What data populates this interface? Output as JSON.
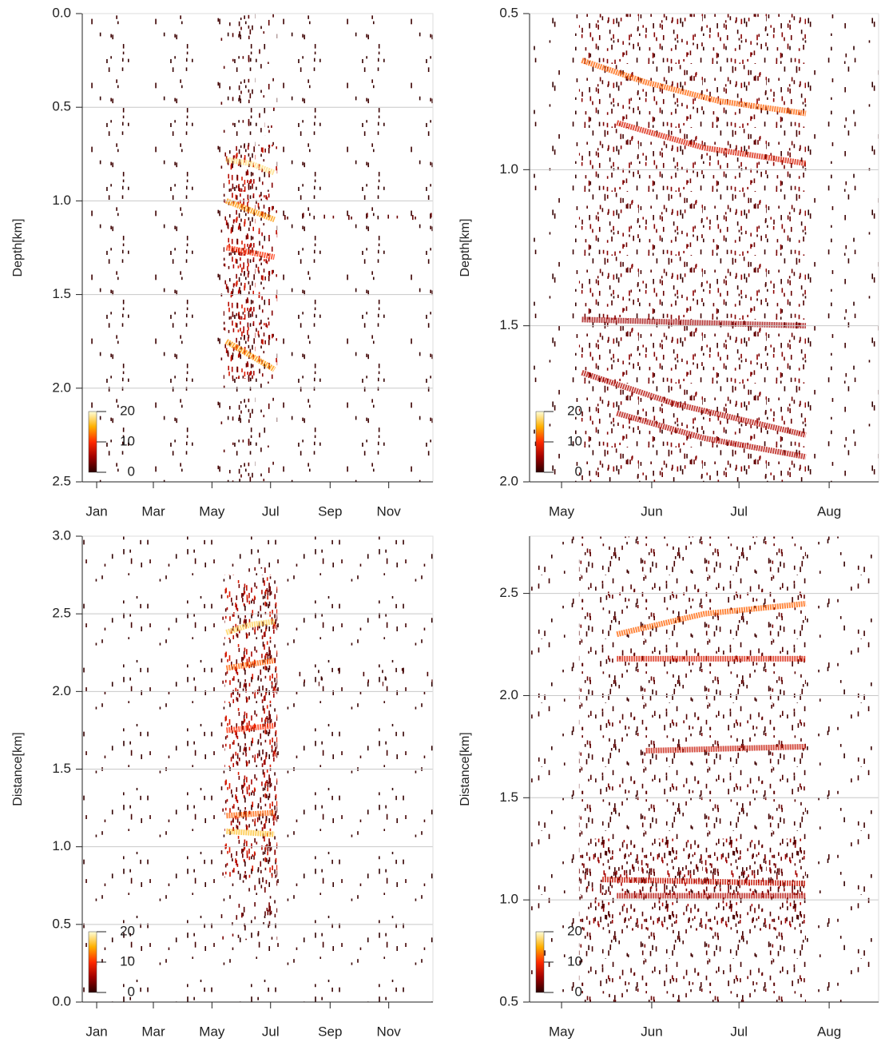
{
  "chart_data": [
    {
      "type": "density",
      "ylabel": "Depth[km]",
      "y_inverted": true,
      "xlim": [
        0,
        365
      ],
      "xticks": [
        {
          "value": 15,
          "label": "Jan"
        },
        {
          "value": 74,
          "label": "Mar"
        },
        {
          "value": 135,
          "label": "May"
        },
        {
          "value": 196,
          "label": "Jul"
        },
        {
          "value": 258,
          "label": "Sep"
        },
        {
          "value": 319,
          "label": "Nov"
        }
      ],
      "ylim": [
        0,
        2.5
      ],
      "yticks": [
        {
          "value": 0,
          "label": "0.0"
        },
        0.5,
        {
          "value": 1,
          "label": "1.0"
        },
        1.5,
        {
          "value": 2,
          "label": "2.0"
        },
        2.5
      ],
      "grid": true,
      "regions": [
        {
          "x": [
            0,
            365
          ],
          "y": [
            0,
            2.5
          ],
          "level": 1
        },
        {
          "x": [
            138,
            203
          ],
          "y": [
            0,
            2.5
          ],
          "level": 2
        },
        {
          "x": [
            147,
            203
          ],
          "y": [
            0.7,
            1.95
          ],
          "level": 8
        },
        {
          "x": [
            190,
            203
          ],
          "y": [
            0.5,
            0.65
          ],
          "level": 4
        },
        {
          "x": [
            203,
            365
          ],
          "y": [
            1.05,
            1.12
          ],
          "level": 3
        }
      ],
      "bands": [
        {
          "x": [
            150,
            175,
            200
          ],
          "y": [
            0.78,
            0.8,
            0.85
          ],
          "level": 18
        },
        {
          "x": [
            150,
            200
          ],
          "y": [
            1.0,
            1.1
          ],
          "level": 14
        },
        {
          "x": [
            150,
            200
          ],
          "y": [
            1.25,
            1.3
          ],
          "level": 10
        },
        {
          "x": [
            150,
            200
          ],
          "y": [
            1.75,
            1.9
          ],
          "level": 14
        }
      ],
      "colorbar": {
        "lim": [
          0,
          20
        ],
        "ticks": [
          0,
          10,
          20
        ],
        "colormap": [
          "#2a0000",
          "#a00000",
          "#ff2a00",
          "#ffb000",
          "#ffffd8"
        ]
      }
    },
    {
      "type": "density",
      "ylabel": "Depth[km]",
      "y_inverted": true,
      "xlim": [
        110,
        230
      ],
      "xticks": [
        {
          "value": 121,
          "label": "May"
        },
        {
          "value": 152,
          "label": "Jun"
        },
        {
          "value": 182,
          "label": "Jul"
        },
        {
          "value": 213,
          "label": "Aug"
        }
      ],
      "ylim": [
        0.5,
        2.0
      ],
      "yticks": [
        0.5,
        {
          "value": 1,
          "label": "1.0"
        },
        1.5,
        {
          "value": 2,
          "label": "2.0"
        }
      ],
      "grid": true,
      "regions": [
        {
          "x": [
            110,
            230
          ],
          "y": [
            0.5,
            2.0
          ],
          "level": 1
        },
        {
          "x": [
            127,
            205
          ],
          "y": [
            0.5,
            2.0
          ],
          "level": 4
        }
      ],
      "bands": [
        {
          "x": [
            128,
            150,
            175,
            205
          ],
          "y": [
            0.65,
            0.72,
            0.78,
            0.82
          ],
          "level": 12
        },
        {
          "x": [
            140,
            170,
            205
          ],
          "y": [
            0.85,
            0.93,
            0.98
          ],
          "level": 8
        },
        {
          "x": [
            128,
            205
          ],
          "y": [
            1.48,
            1.5
          ],
          "level": 5
        },
        {
          "x": [
            128,
            160,
            205
          ],
          "y": [
            1.65,
            1.75,
            1.85
          ],
          "level": 6
        },
        {
          "x": [
            140,
            170,
            205
          ],
          "y": [
            1.78,
            1.86,
            1.92
          ],
          "level": 6
        }
      ],
      "colorbar": {
        "lim": [
          0,
          20
        ],
        "ticks": [
          0,
          10,
          20
        ],
        "colormap": [
          "#2a0000",
          "#a00000",
          "#ff2a00",
          "#ffb000",
          "#ffffd8"
        ]
      }
    },
    {
      "type": "density",
      "ylabel": "Distance[km]",
      "y_inverted": false,
      "xlim": [
        0,
        365
      ],
      "xticks": [
        {
          "value": 15,
          "label": "Jan"
        },
        {
          "value": 74,
          "label": "Mar"
        },
        {
          "value": 135,
          "label": "May"
        },
        {
          "value": 196,
          "label": "Jul"
        },
        {
          "value": 258,
          "label": "Sep"
        },
        {
          "value": 319,
          "label": "Nov"
        }
      ],
      "ylim": [
        0,
        3
      ],
      "yticks": [
        {
          "value": 0,
          "label": "0.0"
        },
        0.5,
        {
          "value": 1,
          "label": "1.0"
        },
        1.5,
        {
          "value": 2,
          "label": "2.0"
        },
        2.5,
        {
          "value": 3,
          "label": "3.0"
        }
      ],
      "grid": true,
      "regions": [
        {
          "x": [
            0,
            365
          ],
          "y": [
            0,
            3
          ],
          "level": 1
        },
        {
          "x": [
            140,
            203
          ],
          "y": [
            0.4,
            2.8
          ],
          "level": 3
        },
        {
          "x": [
            148,
            203
          ],
          "y": [
            0.8,
            2.75
          ],
          "level": 8
        },
        {
          "x": [
            203,
            365
          ],
          "y": [
            2.0,
            2.15
          ],
          "level": 2
        }
      ],
      "bands": [
        {
          "x": [
            150,
            175,
            200
          ],
          "y": [
            2.38,
            2.43,
            2.45
          ],
          "level": 17
        },
        {
          "x": [
            150,
            200
          ],
          "y": [
            2.15,
            2.2
          ],
          "level": 12
        },
        {
          "x": [
            150,
            200
          ],
          "y": [
            1.75,
            1.78
          ],
          "level": 10
        },
        {
          "x": [
            150,
            200
          ],
          "y": [
            1.2,
            1.22
          ],
          "level": 12
        },
        {
          "x": [
            150,
            200
          ],
          "y": [
            1.1,
            1.08
          ],
          "level": 16
        }
      ],
      "colorbar": {
        "lim": [
          0,
          20
        ],
        "ticks": [
          0,
          10,
          20
        ],
        "colormap": [
          "#2a0000",
          "#a00000",
          "#ff2a00",
          "#ffb000",
          "#ffffd8"
        ]
      }
    },
    {
      "type": "density",
      "ylabel": "Distance[km]",
      "y_inverted": false,
      "xlim": [
        110,
        230
      ],
      "xticks": [
        {
          "value": 121,
          "label": "May"
        },
        {
          "value": 152,
          "label": "Jun"
        },
        {
          "value": 182,
          "label": "Jul"
        },
        {
          "value": 213,
          "label": "Aug"
        }
      ],
      "ylim": [
        0.5,
        2.78
      ],
      "yticks": [
        0.5,
        {
          "value": 1,
          "label": "1.0"
        },
        1.5,
        {
          "value": 2,
          "label": "2.0"
        },
        2.5
      ],
      "grid": true,
      "regions": [
        {
          "x": [
            110,
            230
          ],
          "y": [
            0.5,
            2.78
          ],
          "level": 1
        },
        {
          "x": [
            127,
            205
          ],
          "y": [
            0.5,
            2.78
          ],
          "level": 3
        },
        {
          "x": [
            127,
            205
          ],
          "y": [
            0.85,
            1.3
          ],
          "level": 5
        }
      ],
      "bands": [
        {
          "x": [
            140,
            170,
            205
          ],
          "y": [
            2.3,
            2.4,
            2.45
          ],
          "level": 12
        },
        {
          "x": [
            140,
            205
          ],
          "y": [
            2.18,
            2.18
          ],
          "level": 8
        },
        {
          "x": [
            150,
            205
          ],
          "y": [
            1.73,
            1.75
          ],
          "level": 7
        },
        {
          "x": [
            135,
            205
          ],
          "y": [
            1.1,
            1.08
          ],
          "level": 7
        },
        {
          "x": [
            140,
            205
          ],
          "y": [
            1.02,
            1.02
          ],
          "level": 6
        }
      ],
      "colorbar": {
        "lim": [
          0,
          20
        ],
        "ticks": [
          0,
          10,
          20
        ],
        "colormap": [
          "#2a0000",
          "#a00000",
          "#ff2a00",
          "#ffb000",
          "#ffffd8"
        ]
      }
    }
  ]
}
